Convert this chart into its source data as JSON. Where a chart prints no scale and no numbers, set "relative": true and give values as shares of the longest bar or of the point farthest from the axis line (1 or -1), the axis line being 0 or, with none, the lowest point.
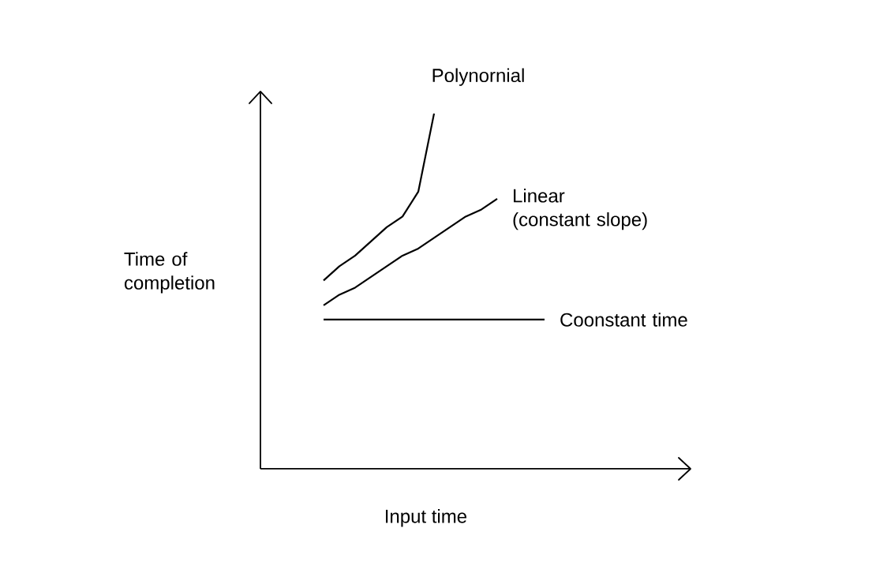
{
  "chart_data": {
    "type": "line",
    "relative": true,
    "xlabel": "Input time",
    "ylabel": "Time of completion",
    "legend": false,
    "marker": "none",
    "line_style": "solid",
    "categories": [
      null,
      null,
      null,
      null,
      null,
      null,
      null,
      null,
      null,
      null,
      null,
      null,
      null,
      null,
      null,
      null,
      null,
      null,
      null,
      null,
      null,
      null,
      null,
      null,
      null,
      null,
      null,
      null
    ],
    "series": [
      {
        "name": "Polynornial",
        "color": "#000000",
        "values": [
          null,
          null,
          null,
          null,
          0.53,
          0.57,
          0.6,
          0.64,
          0.68,
          0.71,
          0.78,
          1.0,
          null,
          null,
          null,
          null,
          null,
          null,
          null,
          null,
          null,
          null,
          null,
          null,
          null,
          null,
          null,
          null
        ]
      },
      {
        "name": "Linear (constant slope)",
        "color": "#000000",
        "values": [
          null,
          null,
          null,
          null,
          0.46,
          0.49,
          0.51,
          0.54,
          0.57,
          0.6,
          0.62,
          0.65,
          0.68,
          0.71,
          0.73,
          0.76,
          null,
          null,
          null,
          null,
          null,
          null,
          null,
          null,
          null,
          null,
          null,
          null
        ]
      },
      {
        "name": "Coonstant time",
        "color": "#000000",
        "values": [
          null,
          null,
          null,
          null,
          0.42,
          0.42,
          0.42,
          0.42,
          0.42,
          0.42,
          0.42,
          0.42,
          0.42,
          0.42,
          0.42,
          0.42,
          0.42,
          0.42,
          0.42,
          null,
          null,
          null,
          null,
          null,
          null,
          null,
          null,
          null
        ]
      }
    ]
  }
}
